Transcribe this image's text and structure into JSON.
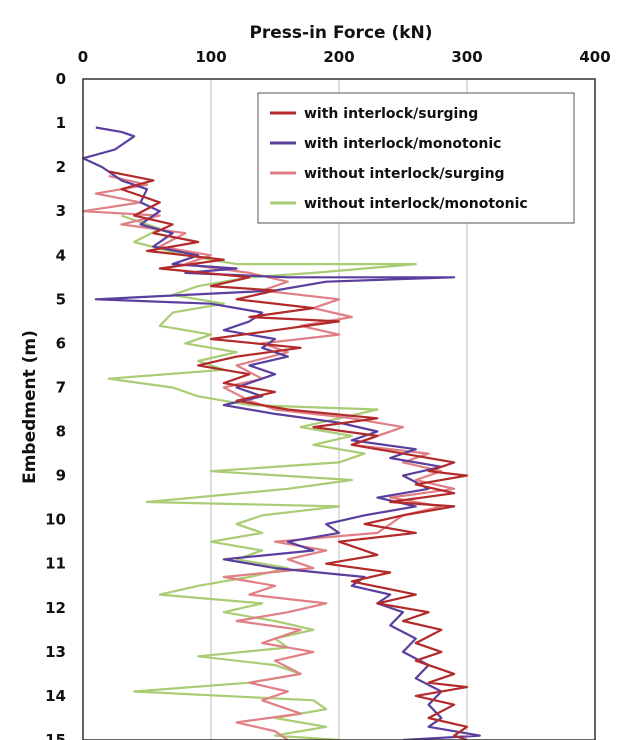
{
  "chart_data": {
    "type": "line",
    "title": "",
    "xlabel": "Press-in Force (kN)",
    "ylabel": "Embedment (m)",
    "xlim": [
      0,
      400
    ],
    "ylim": [
      0,
      15
    ],
    "y_inverted": true,
    "x_axis_position": "top",
    "x_ticks": [
      "0",
      "100",
      "200",
      "300",
      "400"
    ],
    "y_ticks": [
      "0",
      "1",
      "2",
      "3",
      "4",
      "5",
      "6",
      "7",
      "8",
      "9",
      "10",
      "11",
      "12",
      "13",
      "14",
      "15"
    ],
    "grid": "vertical only",
    "legend_position": "top-right",
    "series": [
      {
        "name": "with interlock/surging",
        "color": "#b22a2a",
        "points": [
          [
            20,
            2.1
          ],
          [
            55,
            2.3
          ],
          [
            30,
            2.5
          ],
          [
            60,
            2.8
          ],
          [
            40,
            3.1
          ],
          [
            70,
            3.3
          ],
          [
            55,
            3.5
          ],
          [
            90,
            3.7
          ],
          [
            50,
            3.9
          ],
          [
            110,
            4.1
          ],
          [
            60,
            4.3
          ],
          [
            130,
            4.5
          ],
          [
            100,
            4.7
          ],
          [
            150,
            4.8
          ],
          [
            120,
            5.0
          ],
          [
            180,
            5.2
          ],
          [
            130,
            5.4
          ],
          [
            200,
            5.5
          ],
          [
            150,
            5.7
          ],
          [
            100,
            5.9
          ],
          [
            170,
            6.1
          ],
          [
            120,
            6.3
          ],
          [
            90,
            6.5
          ],
          [
            130,
            6.7
          ],
          [
            110,
            6.9
          ],
          [
            150,
            7.1
          ],
          [
            120,
            7.3
          ],
          [
            160,
            7.5
          ],
          [
            230,
            7.7
          ],
          [
            180,
            7.9
          ],
          [
            230,
            8.1
          ],
          [
            210,
            8.3
          ],
          [
            250,
            8.5
          ],
          [
            290,
            8.7
          ],
          [
            270,
            8.9
          ],
          [
            300,
            9.0
          ],
          [
            260,
            9.2
          ],
          [
            290,
            9.4
          ],
          [
            240,
            9.6
          ],
          [
            290,
            9.7
          ],
          [
            250,
            9.9
          ],
          [
            220,
            10.1
          ],
          [
            260,
            10.3
          ],
          [
            200,
            10.5
          ],
          [
            230,
            10.8
          ],
          [
            190,
            11.0
          ],
          [
            240,
            11.2
          ],
          [
            210,
            11.4
          ],
          [
            260,
            11.7
          ],
          [
            230,
            11.9
          ],
          [
            270,
            12.1
          ],
          [
            250,
            12.3
          ],
          [
            280,
            12.5
          ],
          [
            260,
            12.8
          ],
          [
            280,
            13.0
          ],
          [
            260,
            13.2
          ],
          [
            290,
            13.5
          ],
          [
            270,
            13.7
          ],
          [
            300,
            13.8
          ],
          [
            260,
            14.0
          ],
          [
            290,
            14.2
          ],
          [
            270,
            14.5
          ],
          [
            300,
            14.7
          ],
          [
            290,
            14.9
          ],
          [
            300,
            15.0
          ]
        ]
      },
      {
        "name": "with interlock/monotonic",
        "color": "#5b3f9e",
        "points": [
          [
            10,
            1.1
          ],
          [
            30,
            1.2
          ],
          [
            40,
            1.3
          ],
          [
            25,
            1.6
          ],
          [
            0,
            1.8
          ],
          [
            15,
            2.0
          ],
          [
            30,
            2.3
          ],
          [
            50,
            2.5
          ],
          [
            45,
            2.8
          ],
          [
            60,
            3.0
          ],
          [
            45,
            3.3
          ],
          [
            70,
            3.5
          ],
          [
            55,
            3.8
          ],
          [
            90,
            4.0
          ],
          [
            70,
            4.2
          ],
          [
            120,
            4.3
          ],
          [
            80,
            4.4
          ],
          [
            160,
            4.5
          ],
          [
            290,
            4.5
          ],
          [
            190,
            4.6
          ],
          [
            150,
            4.8
          ],
          [
            10,
            5.0
          ],
          [
            100,
            5.1
          ],
          [
            140,
            5.3
          ],
          [
            130,
            5.5
          ],
          [
            110,
            5.7
          ],
          [
            150,
            5.9
          ],
          [
            140,
            6.1
          ],
          [
            160,
            6.3
          ],
          [
            130,
            6.5
          ],
          [
            150,
            6.7
          ],
          [
            120,
            7.0
          ],
          [
            140,
            7.2
          ],
          [
            110,
            7.4
          ],
          [
            150,
            7.6
          ],
          [
            200,
            7.8
          ],
          [
            230,
            8.0
          ],
          [
            210,
            8.2
          ],
          [
            260,
            8.4
          ],
          [
            240,
            8.6
          ],
          [
            280,
            8.8
          ],
          [
            250,
            9.0
          ],
          [
            270,
            9.3
          ],
          [
            230,
            9.5
          ],
          [
            260,
            9.7
          ],
          [
            220,
            9.9
          ],
          [
            190,
            10.1
          ],
          [
            200,
            10.3
          ],
          [
            160,
            10.5
          ],
          [
            180,
            10.7
          ],
          [
            110,
            10.9
          ],
          [
            150,
            11.1
          ],
          [
            220,
            11.3
          ],
          [
            210,
            11.5
          ],
          [
            240,
            11.7
          ],
          [
            230,
            11.9
          ],
          [
            250,
            12.1
          ],
          [
            240,
            12.4
          ],
          [
            260,
            12.7
          ],
          [
            250,
            13.0
          ],
          [
            270,
            13.3
          ],
          [
            260,
            13.6
          ],
          [
            280,
            13.9
          ],
          [
            270,
            14.2
          ],
          [
            280,
            14.5
          ],
          [
            270,
            14.7
          ],
          [
            310,
            14.9
          ],
          [
            250,
            15.0
          ]
        ]
      },
      {
        "name": "without interlock/surging",
        "color": "#e07f86",
        "points": [
          [
            20,
            2.2
          ],
          [
            50,
            2.4
          ],
          [
            10,
            2.6
          ],
          [
            45,
            2.8
          ],
          [
            0,
            3.0
          ],
          [
            60,
            3.1
          ],
          [
            30,
            3.3
          ],
          [
            80,
            3.5
          ],
          [
            60,
            3.8
          ],
          [
            100,
            4.0
          ],
          [
            80,
            4.2
          ],
          [
            130,
            4.4
          ],
          [
            160,
            4.6
          ],
          [
            140,
            4.8
          ],
          [
            200,
            5.0
          ],
          [
            180,
            5.2
          ],
          [
            210,
            5.4
          ],
          [
            170,
            5.6
          ],
          [
            200,
            5.8
          ],
          [
            140,
            6.0
          ],
          [
            160,
            6.2
          ],
          [
            120,
            6.5
          ],
          [
            140,
            6.8
          ],
          [
            110,
            7.0
          ],
          [
            130,
            7.3
          ],
          [
            150,
            7.5
          ],
          [
            210,
            7.7
          ],
          [
            250,
            7.9
          ],
          [
            230,
            8.1
          ],
          [
            210,
            8.3
          ],
          [
            270,
            8.5
          ],
          [
            250,
            8.7
          ],
          [
            280,
            8.9
          ],
          [
            260,
            9.1
          ],
          [
            290,
            9.3
          ],
          [
            240,
            9.5
          ],
          [
            280,
            9.7
          ],
          [
            250,
            9.9
          ],
          [
            240,
            10.1
          ],
          [
            230,
            10.3
          ],
          [
            150,
            10.5
          ],
          [
            190,
            10.7
          ],
          [
            160,
            10.9
          ],
          [
            180,
            11.1
          ],
          [
            110,
            11.3
          ],
          [
            150,
            11.5
          ],
          [
            130,
            11.7
          ],
          [
            190,
            11.9
          ],
          [
            160,
            12.1
          ],
          [
            120,
            12.3
          ],
          [
            170,
            12.5
          ],
          [
            140,
            12.8
          ],
          [
            180,
            13.0
          ],
          [
            150,
            13.2
          ],
          [
            170,
            13.5
          ],
          [
            130,
            13.7
          ],
          [
            160,
            13.9
          ],
          [
            140,
            14.1
          ],
          [
            170,
            14.4
          ],
          [
            120,
            14.6
          ],
          [
            150,
            14.8
          ],
          [
            160,
            15.0
          ]
        ]
      },
      {
        "name": "without interlock/monotonic",
        "color": "#a9cc74",
        "points": [
          [
            30,
            3.1
          ],
          [
            60,
            3.4
          ],
          [
            40,
            3.7
          ],
          [
            80,
            4.0
          ],
          [
            120,
            4.2
          ],
          [
            260,
            4.2
          ],
          [
            180,
            4.4
          ],
          [
            130,
            4.5
          ],
          [
            90,
            4.7
          ],
          [
            70,
            4.9
          ],
          [
            110,
            5.1
          ],
          [
            70,
            5.3
          ],
          [
            60,
            5.6
          ],
          [
            100,
            5.8
          ],
          [
            80,
            6.0
          ],
          [
            120,
            6.2
          ],
          [
            90,
            6.4
          ],
          [
            110,
            6.6
          ],
          [
            20,
            6.8
          ],
          [
            70,
            7.0
          ],
          [
            90,
            7.2
          ],
          [
            130,
            7.4
          ],
          [
            230,
            7.5
          ],
          [
            200,
            7.7
          ],
          [
            170,
            7.9
          ],
          [
            210,
            8.1
          ],
          [
            180,
            8.3
          ],
          [
            220,
            8.5
          ],
          [
            200,
            8.7
          ],
          [
            100,
            8.9
          ],
          [
            210,
            9.1
          ],
          [
            160,
            9.3
          ],
          [
            50,
            9.6
          ],
          [
            200,
            9.7
          ],
          [
            140,
            9.9
          ],
          [
            120,
            10.1
          ],
          [
            140,
            10.3
          ],
          [
            100,
            10.5
          ],
          [
            140,
            10.7
          ],
          [
            120,
            10.9
          ],
          [
            160,
            11.1
          ],
          [
            130,
            11.3
          ],
          [
            90,
            11.5
          ],
          [
            60,
            11.7
          ],
          [
            140,
            11.9
          ],
          [
            110,
            12.1
          ],
          [
            150,
            12.3
          ],
          [
            180,
            12.5
          ],
          [
            150,
            12.7
          ],
          [
            160,
            12.9
          ],
          [
            90,
            13.1
          ],
          [
            150,
            13.3
          ],
          [
            170,
            13.5
          ],
          [
            130,
            13.7
          ],
          [
            40,
            13.9
          ],
          [
            180,
            14.1
          ],
          [
            190,
            14.3
          ],
          [
            150,
            14.5
          ],
          [
            190,
            14.7
          ],
          [
            150,
            14.9
          ],
          [
            200,
            15.0
          ]
        ]
      }
    ]
  }
}
